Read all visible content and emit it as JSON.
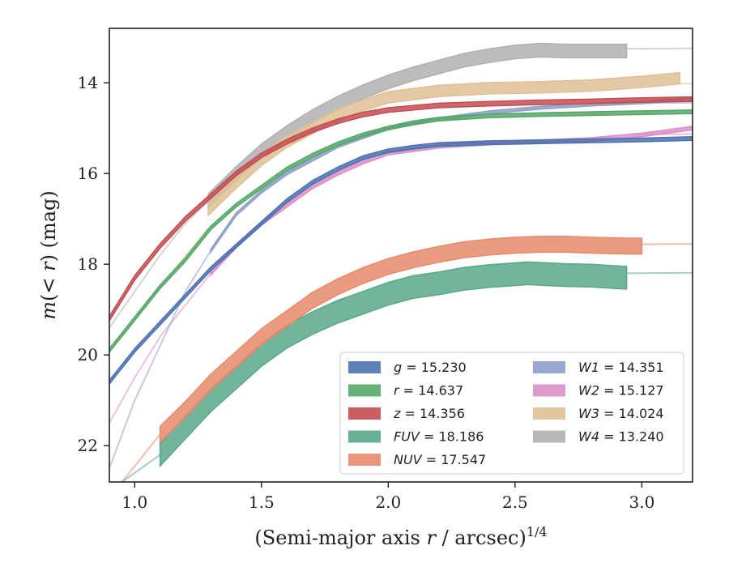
{
  "chart_data": {
    "type": "line",
    "xlabel": "(Semi-major axis r / arcsec)",
    "xlabel_superscript": "1/4",
    "ylabel": "m(< r) (mag)",
    "xlim": [
      0.9,
      3.2
    ],
    "ylim": [
      22.8,
      12.8
    ],
    "y_inverted": true,
    "grid": false,
    "legend_position": "lower-right",
    "xticks": [
      "1.0",
      "1.5",
      "2.0",
      "2.5",
      "3.0"
    ],
    "xtick_values": [
      1.0,
      1.5,
      2.0,
      2.5,
      3.0
    ],
    "yticks": [
      "14",
      "16",
      "18",
      "20",
      "22"
    ],
    "ytick_values": [
      14,
      16,
      18,
      20,
      22
    ],
    "series": [
      {
        "name": "g",
        "label_value": "= 15.230",
        "color": "#4c72b0",
        "band": 0.08,
        "measured": [
          [
            0.9,
            20.6
          ],
          [
            1.0,
            19.9
          ],
          [
            1.1,
            19.3
          ],
          [
            1.2,
            18.7
          ],
          [
            1.3,
            18.1
          ],
          [
            1.4,
            17.6
          ],
          [
            1.5,
            17.1
          ],
          [
            1.6,
            16.6
          ],
          [
            1.7,
            16.2
          ],
          [
            1.8,
            15.9
          ],
          [
            1.9,
            15.65
          ],
          [
            2.0,
            15.5
          ],
          [
            2.1,
            15.42
          ],
          [
            2.2,
            15.36
          ],
          [
            2.4,
            15.32
          ],
          [
            2.6,
            15.3
          ],
          [
            2.8,
            15.28
          ],
          [
            3.0,
            15.26
          ],
          [
            3.2,
            15.23
          ]
        ],
        "extrapolated": []
      },
      {
        "name": "r",
        "label_value": "= 14.637",
        "color": "#55a868",
        "band": 0.08,
        "measured": [
          [
            0.9,
            19.9
          ],
          [
            1.0,
            19.2
          ],
          [
            1.1,
            18.5
          ],
          [
            1.2,
            17.9
          ],
          [
            1.3,
            17.2
          ],
          [
            1.4,
            16.7
          ],
          [
            1.5,
            16.3
          ],
          [
            1.6,
            15.9
          ],
          [
            1.7,
            15.6
          ],
          [
            1.8,
            15.35
          ],
          [
            1.9,
            15.15
          ],
          [
            2.0,
            15.0
          ],
          [
            2.1,
            14.88
          ],
          [
            2.2,
            14.8
          ],
          [
            2.4,
            14.73
          ],
          [
            2.6,
            14.7
          ],
          [
            2.8,
            14.68
          ],
          [
            3.0,
            14.66
          ],
          [
            3.2,
            14.64
          ]
        ],
        "extrapolated": []
      },
      {
        "name": "z",
        "label_value": "= 14.356",
        "color": "#c44e52",
        "band": 0.1,
        "measured": [
          [
            0.9,
            19.2
          ],
          [
            1.0,
            18.3
          ],
          [
            1.1,
            17.6
          ],
          [
            1.2,
            17.0
          ],
          [
            1.3,
            16.5
          ],
          [
            1.4,
            16.0
          ],
          [
            1.5,
            15.6
          ],
          [
            1.6,
            15.3
          ],
          [
            1.7,
            15.05
          ],
          [
            1.8,
            14.85
          ],
          [
            1.9,
            14.7
          ],
          [
            2.0,
            14.6
          ],
          [
            2.2,
            14.5
          ],
          [
            2.4,
            14.46
          ],
          [
            2.6,
            14.43
          ],
          [
            2.8,
            14.41
          ],
          [
            3.0,
            14.38
          ],
          [
            3.2,
            14.36
          ]
        ],
        "extrapolated": []
      },
      {
        "name": "FUV",
        "label_value": "= 18.186",
        "color": "#59a88a",
        "band": 0.5,
        "measured": [
          [
            1.1,
            22.2
          ],
          [
            1.3,
            21.0
          ],
          [
            1.4,
            20.5
          ],
          [
            1.5,
            20.0
          ],
          [
            1.6,
            19.6
          ],
          [
            1.7,
            19.3
          ],
          [
            1.8,
            19.05
          ],
          [
            1.9,
            18.85
          ],
          [
            2.0,
            18.65
          ],
          [
            2.1,
            18.5
          ],
          [
            2.2,
            18.42
          ],
          [
            2.3,
            18.32
          ],
          [
            2.4,
            18.26
          ],
          [
            2.55,
            18.2
          ],
          [
            2.7,
            18.24
          ],
          [
            2.8,
            18.25
          ],
          [
            2.94,
            18.3
          ]
        ],
        "extrapolated": [
          [
            0.95,
            22.8
          ],
          [
            1.1,
            22.2
          ]
        ],
        "tail": [
          [
            2.94,
            18.2
          ],
          [
            3.2,
            18.19
          ]
        ]
      },
      {
        "name": "NUV",
        "label_value": "= 17.547",
        "color": "#e8896a",
        "band": 0.35,
        "measured": [
          [
            1.1,
            21.75
          ],
          [
            1.2,
            21.2
          ],
          [
            1.3,
            20.6
          ],
          [
            1.4,
            20.1
          ],
          [
            1.5,
            19.6
          ],
          [
            1.6,
            19.2
          ],
          [
            1.7,
            18.8
          ],
          [
            1.8,
            18.5
          ],
          [
            1.9,
            18.25
          ],
          [
            2.0,
            18.05
          ],
          [
            2.1,
            17.9
          ],
          [
            2.2,
            17.78
          ],
          [
            2.3,
            17.68
          ],
          [
            2.4,
            17.62
          ],
          [
            2.5,
            17.58
          ],
          [
            2.6,
            17.56
          ],
          [
            2.7,
            17.56
          ],
          [
            2.8,
            17.58
          ],
          [
            2.94,
            17.6
          ],
          [
            3.0,
            17.6
          ]
        ],
        "extrapolated": [
          [
            0.95,
            22.8
          ],
          [
            1.1,
            21.75
          ]
        ],
        "tail": [
          [
            3.0,
            17.56
          ],
          [
            3.2,
            17.55
          ]
        ]
      },
      {
        "name": "W1",
        "label_value": "= 14.351",
        "color": "#8e9fc9",
        "band": 0.06,
        "measured": [
          [
            1.3,
            17.7
          ],
          [
            1.4,
            16.9
          ],
          [
            1.5,
            16.4
          ],
          [
            1.6,
            16.0
          ],
          [
            1.7,
            15.7
          ],
          [
            1.8,
            15.4
          ],
          [
            1.9,
            15.2
          ],
          [
            2.0,
            15.0
          ],
          [
            2.2,
            14.8
          ],
          [
            2.4,
            14.65
          ],
          [
            2.6,
            14.55
          ],
          [
            2.8,
            14.48
          ],
          [
            3.0,
            14.43
          ],
          [
            3.2,
            14.35
          ]
        ],
        "extrapolated": [
          [
            0.9,
            22.5
          ],
          [
            1.0,
            21.0
          ],
          [
            1.1,
            19.8
          ],
          [
            1.2,
            18.6
          ],
          [
            1.3,
            17.7
          ]
        ],
        "tail": [
          [
            3.0,
            14.45
          ],
          [
            3.2,
            14.44
          ]
        ]
      },
      {
        "name": "W2",
        "label_value": "= 15.127",
        "color": "#dc8fc6",
        "band": 0.08,
        "measured": [
          [
            1.3,
            18.2
          ],
          [
            1.4,
            17.6
          ],
          [
            1.5,
            17.1
          ],
          [
            1.6,
            16.7
          ],
          [
            1.7,
            16.3
          ],
          [
            1.8,
            16.0
          ],
          [
            1.9,
            15.75
          ],
          [
            2.0,
            15.55
          ],
          [
            2.2,
            15.4
          ],
          [
            2.4,
            15.33
          ],
          [
            2.6,
            15.3
          ],
          [
            2.8,
            15.25
          ],
          [
            3.0,
            15.15
          ],
          [
            3.2,
            15.0
          ]
        ],
        "extrapolated": [
          [
            0.9,
            21.5
          ],
          [
            1.0,
            20.5
          ],
          [
            1.1,
            19.6
          ],
          [
            1.2,
            18.9
          ],
          [
            1.3,
            18.2
          ]
        ],
        "tail": [
          [
            3.0,
            15.14
          ],
          [
            3.2,
            15.13
          ]
        ]
      },
      {
        "name": "W3",
        "label_value": "= 14.024",
        "color": "#dfc095",
        "band": 0.25,
        "measured": [
          [
            1.29,
            16.8
          ],
          [
            1.4,
            16.2
          ],
          [
            1.5,
            15.7
          ],
          [
            1.6,
            15.3
          ],
          [
            1.7,
            15.0
          ],
          [
            1.8,
            14.7
          ],
          [
            1.9,
            14.5
          ],
          [
            2.0,
            14.32
          ],
          [
            2.2,
            14.18
          ],
          [
            2.4,
            14.12
          ],
          [
            2.6,
            14.1
          ],
          [
            2.8,
            14.06
          ],
          [
            3.0,
            13.98
          ],
          [
            3.15,
            13.9
          ]
        ],
        "extrapolated": [
          [
            0.95,
            19.6
          ],
          [
            1.1,
            18.5
          ],
          [
            1.29,
            17.2
          ]
        ],
        "tail": [
          [
            3.15,
            14.02
          ],
          [
            3.2,
            14.02
          ]
        ]
      },
      {
        "name": "W4",
        "label_value": "= 13.240",
        "color": "#b0b0b0",
        "band": 0.3,
        "measured": [
          [
            1.29,
            16.6
          ],
          [
            1.4,
            16.0
          ],
          [
            1.5,
            15.5
          ],
          [
            1.6,
            15.1
          ],
          [
            1.7,
            14.75
          ],
          [
            1.8,
            14.45
          ],
          [
            1.9,
            14.2
          ],
          [
            2.0,
            13.98
          ],
          [
            2.1,
            13.8
          ],
          [
            2.2,
            13.65
          ],
          [
            2.3,
            13.5
          ],
          [
            2.4,
            13.4
          ],
          [
            2.5,
            13.32
          ],
          [
            2.6,
            13.28
          ],
          [
            2.7,
            13.3
          ],
          [
            2.8,
            13.3
          ],
          [
            2.94,
            13.3
          ]
        ],
        "extrapolated": [
          [
            0.9,
            19.4
          ],
          [
            1.0,
            18.6
          ],
          [
            1.1,
            17.8
          ],
          [
            1.2,
            17.1
          ],
          [
            1.29,
            16.6
          ]
        ],
        "tail": [
          [
            2.94,
            13.25
          ],
          [
            3.2,
            13.24
          ]
        ]
      }
    ]
  }
}
